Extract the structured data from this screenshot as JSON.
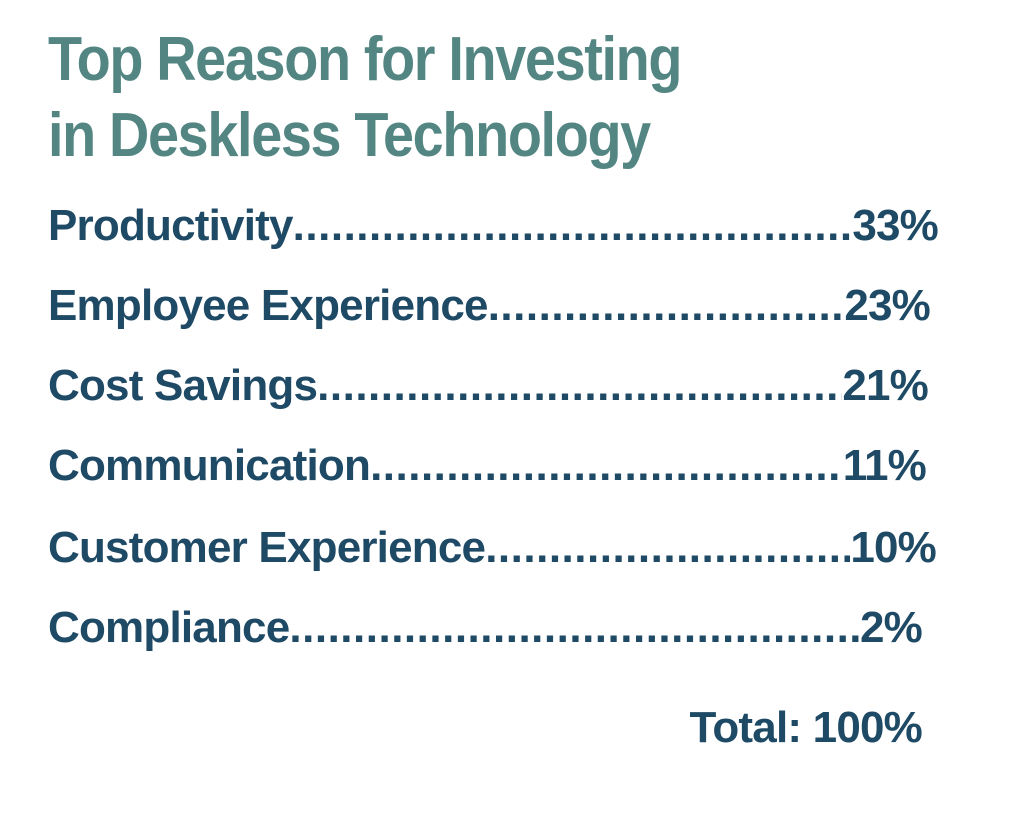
{
  "chart_data": {
    "type": "table",
    "title_lines": [
      "Top Reason for Investing",
      "in Deskless Technology"
    ],
    "leader": "........................................................................................................",
    "rows": [
      {
        "label": "Productivity",
        "value": "33%",
        "percent": 33
      },
      {
        "label": "Employee Experience",
        "value": "23%",
        "percent": 23
      },
      {
        "label": "Cost Savings",
        "value": "21%",
        "percent": 21
      },
      {
        "label": "Communication",
        "value": "11%",
        "percent": 11
      },
      {
        "label": "Customer Experience",
        "value": "10%",
        "percent": 10
      },
      {
        "label": "Compliance",
        "value": "2%",
        "percent": 2
      }
    ],
    "total": "Total: 100%"
  },
  "colors": {
    "title": "#538683",
    "text": "#1f4a66",
    "background": "#ffffff"
  }
}
